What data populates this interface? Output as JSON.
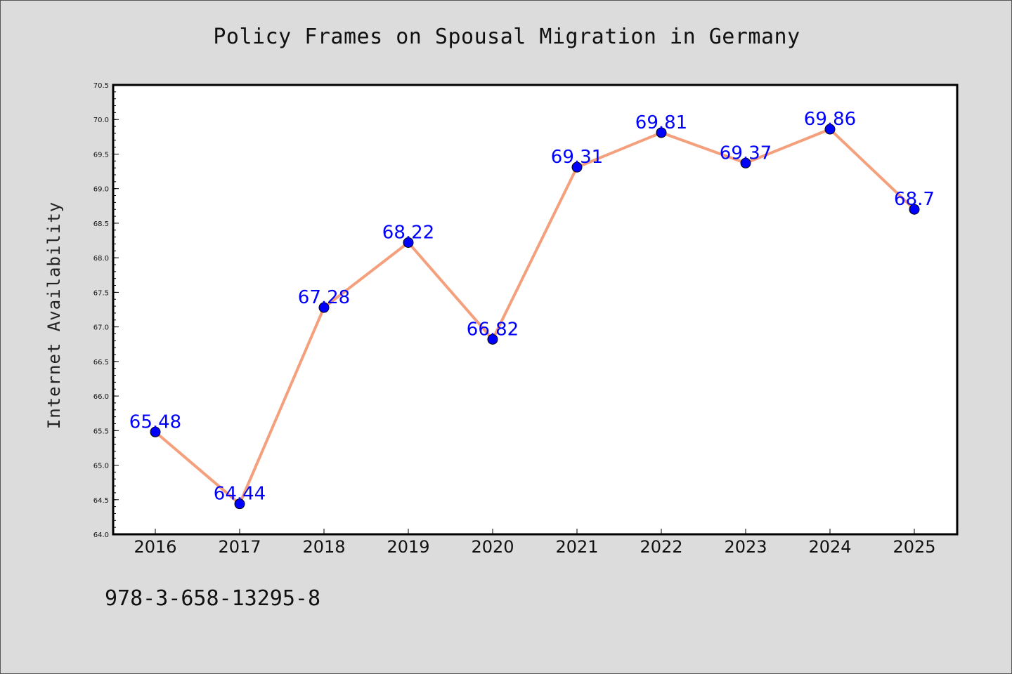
{
  "isbn": "978-3-658-13295-8",
  "chart_data": {
    "type": "line",
    "title": "Policy Frames on Spousal Migration in Germany",
    "xlabel": "",
    "ylabel": "Internet Availability",
    "x": [
      "2016",
      "2017",
      "2018",
      "2019",
      "2020",
      "2021",
      "2022",
      "2023",
      "2024",
      "2025"
    ],
    "series": [
      {
        "values": [
          65.48,
          64.44,
          67.28,
          68.22,
          66.82,
          69.31,
          69.81,
          69.37,
          69.86,
          68.7
        ],
        "data_labels": [
          "65.48",
          "64.44",
          "67.28",
          "68.22",
          "66.82",
          "69.31",
          "69.81",
          "69.37",
          "69.86",
          "68.7"
        ],
        "line_color": "#f4a07c",
        "marker_color": "#0000ff"
      }
    ],
    "ylim": [
      64.0,
      70.5
    ],
    "yticks": [
      "64.0",
      "64.5",
      "65.0",
      "65.5",
      "66.0",
      "66.5",
      "67.0",
      "67.5",
      "68.0",
      "68.5",
      "69.0",
      "69.5",
      "70.0",
      "70.5"
    ],
    "grid": false,
    "legend": "none",
    "label_color": "#0000ff"
  }
}
